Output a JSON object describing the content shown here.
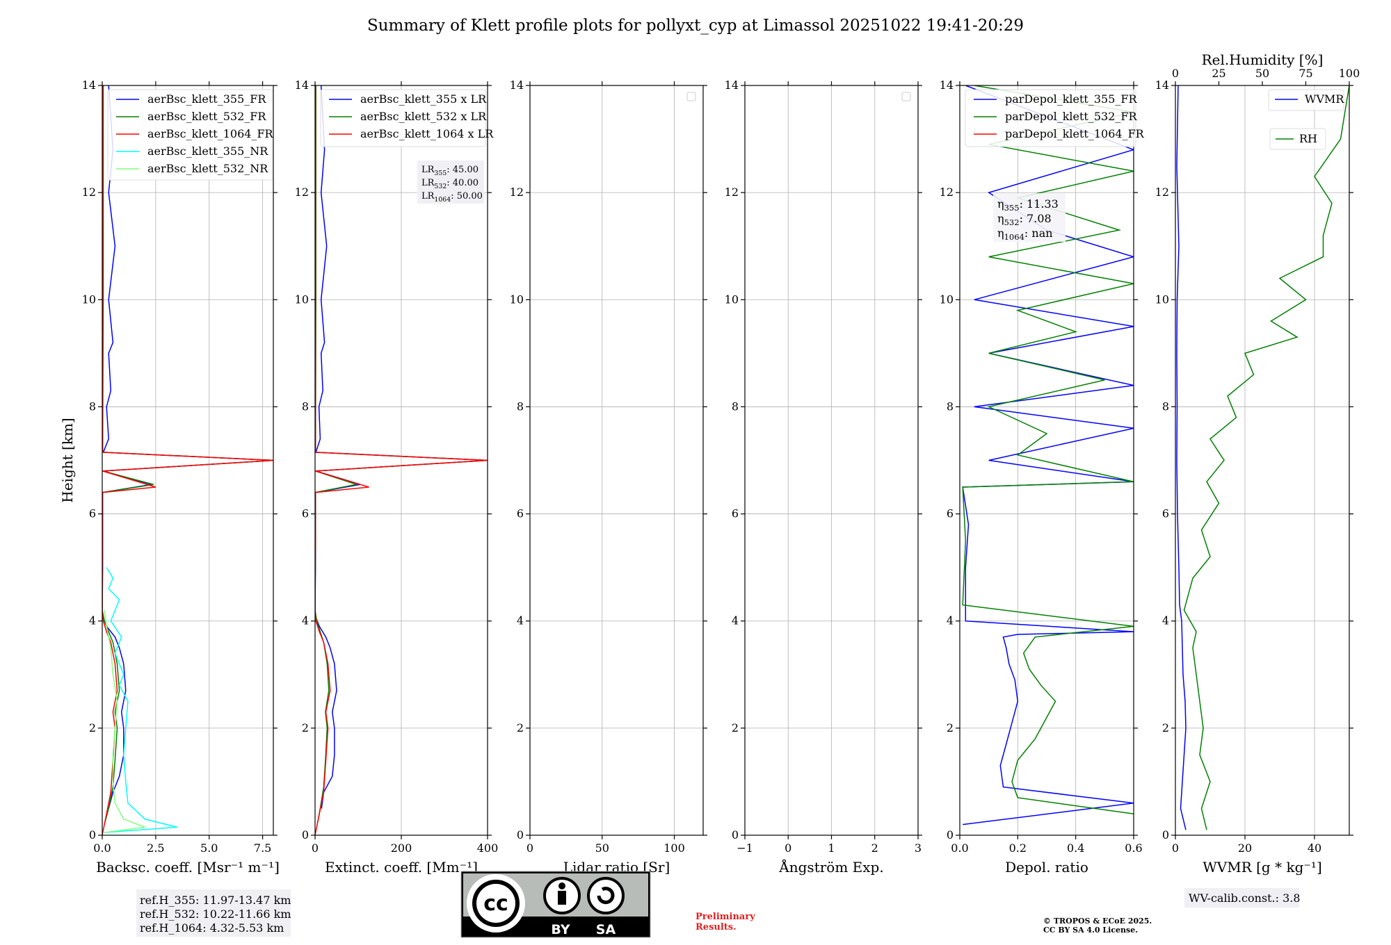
{
  "figure": {
    "title": "Summary of Klett profile plots for pollyxt_cyp at Limassol 20251022 19:41-20:29"
  },
  "chart_data": [
    {
      "type": "line",
      "panel": "backscatter",
      "xlabel": "Backsc. coeff. [Msr⁻¹ m⁻¹]",
      "ylabel": "Height [km]",
      "xlim": [
        0,
        8
      ],
      "ylim": [
        0,
        14
      ],
      "xticks": [
        "0.0",
        "2.5",
        "5.0",
        "7.5"
      ],
      "xtick_values": [
        0,
        2.5,
        5,
        7.5
      ],
      "yticks": [
        "0",
        "2",
        "4",
        "6",
        "8",
        "10",
        "12",
        "14"
      ],
      "grid": true,
      "legend_position": "top-right",
      "series": [
        {
          "name": "aerBsc_klett_355_FR",
          "color": "#0000ff",
          "x": [
            0.3,
            0.5,
            0.8,
            1.0,
            1.0,
            0.9,
            1.1,
            1.0,
            0.8,
            0.6,
            0.2,
            0.0,
            0.02,
            0.02,
            0.02,
            2.3,
            0.05,
            8.0,
            0.05,
            0.3,
            0.2,
            0.4,
            0.3,
            0.5,
            0.3,
            0.6,
            0.3,
            0.5,
            0.3
          ],
          "y": [
            0.5,
            0.8,
            1.1,
            1.5,
            2.0,
            2.3,
            2.7,
            3.2,
            3.5,
            3.7,
            3.9,
            4.1,
            5.0,
            6.0,
            6.4,
            6.55,
            6.8,
            7.0,
            7.15,
            7.4,
            8.0,
            8.3,
            9.0,
            9.2,
            10.0,
            11.0,
            12.0,
            12.8,
            14.0
          ]
        },
        {
          "name": "aerBsc_klett_532_FR",
          "color": "#008000",
          "x": [
            0.1,
            0.3,
            0.5,
            0.6,
            0.7,
            0.6,
            0.8,
            0.7,
            0.5,
            0.3,
            0.1,
            0.0,
            0.01,
            0.01,
            2.4,
            0.02,
            8.0,
            0.02,
            0.05,
            0.05
          ],
          "y": [
            0.2,
            0.5,
            0.9,
            1.4,
            2.0,
            2.3,
            2.7,
            3.2,
            3.6,
            3.8,
            4.0,
            4.2,
            5.5,
            6.4,
            6.55,
            6.8,
            7.0,
            7.15,
            10.0,
            14.0
          ]
        },
        {
          "name": "aerBsc_klett_1064_FR",
          "color": "#ff0000",
          "x": [
            0.0,
            0.2,
            0.4,
            0.5,
            0.6,
            0.5,
            0.7,
            0.6,
            0.4,
            0.2,
            0.05,
            0.0,
            0.01,
            0.01,
            2.5,
            0.02,
            8.0,
            0.02,
            0.02,
            0.02
          ],
          "y": [
            0.0,
            0.4,
            0.8,
            1.4,
            2.0,
            2.3,
            2.7,
            3.2,
            3.6,
            3.8,
            4.0,
            4.2,
            5.5,
            6.4,
            6.5,
            6.8,
            7.0,
            7.15,
            10.0,
            14.0
          ]
        },
        {
          "name": "aerBsc_klett_355_NR",
          "color": "#00ffff",
          "x": [
            0.1,
            3.5,
            2.0,
            1.2,
            1.1,
            1.0,
            1.1,
            1.2,
            0.8,
            1.0,
            0.6,
            0.9,
            0.4,
            0.8,
            0.3,
            0.5,
            0.2
          ],
          "y": [
            0.05,
            0.15,
            0.3,
            0.6,
            1.0,
            1.5,
            2.0,
            2.5,
            2.8,
            3.0,
            3.4,
            3.7,
            4.0,
            4.4,
            4.6,
            4.8,
            5.0
          ]
        },
        {
          "name": "aerBsc_klett_532_NR",
          "color": "#7fff7f",
          "x": [
            0.1,
            2.0,
            1.0,
            0.6,
            0.5,
            0.5,
            0.6,
            0.7,
            0.5,
            0.4,
            0.2,
            0.1
          ],
          "y": [
            0.05,
            0.15,
            0.3,
            0.6,
            1.0,
            1.5,
            2.0,
            2.5,
            3.0,
            3.5,
            3.9,
            4.2
          ]
        }
      ],
      "annotations": [
        "ref.H_355: 11.97-13.47 km",
        "ref.H_532: 10.22-11.66 km",
        "ref.H_1064: 4.32-5.53 km"
      ]
    },
    {
      "type": "line",
      "panel": "extinction",
      "xlabel": "Extinct. coeff. [Mm⁻¹]",
      "xlim": [
        0,
        400
      ],
      "ylim": [
        0,
        14
      ],
      "xticks": [
        "0",
        "200",
        "400"
      ],
      "xtick_values": [
        0,
        200,
        400
      ],
      "yticks": [
        "0",
        "2",
        "4",
        "6",
        "8",
        "10",
        "12",
        "14"
      ],
      "grid": true,
      "legend_position": "top-right",
      "series": [
        {
          "name": "aerBsc_klett_355 x LR",
          "color": "#0000ff",
          "x": [
            15,
            20,
            40,
            45,
            45,
            40,
            50,
            45,
            35,
            25,
            10,
            0,
            1,
            1,
            1,
            105,
            2,
            400,
            2,
            12,
            9,
            18,
            14,
            22,
            14,
            27,
            14,
            22,
            14
          ],
          "y": [
            0.5,
            0.8,
            1.1,
            1.5,
            2.0,
            2.3,
            2.7,
            3.2,
            3.5,
            3.7,
            3.9,
            4.1,
            5.0,
            6.0,
            6.4,
            6.55,
            6.8,
            7.0,
            7.15,
            7.4,
            8.0,
            8.3,
            9.0,
            9.2,
            10.0,
            11.0,
            12.0,
            12.8,
            14.0
          ]
        },
        {
          "name": "aerBsc_klett_532 x LR",
          "color": "#008000",
          "x": [
            5,
            12,
            20,
            24,
            28,
            24,
            32,
            28,
            20,
            12,
            4,
            0,
            1,
            1,
            96,
            1,
            400,
            1,
            2,
            2
          ],
          "y": [
            0.2,
            0.5,
            0.9,
            1.4,
            2.0,
            2.3,
            2.7,
            3.2,
            3.6,
            3.8,
            4.0,
            4.2,
            5.5,
            6.4,
            6.55,
            6.8,
            7.0,
            7.15,
            10.0,
            14.0
          ]
        },
        {
          "name": "aerBsc_klett_1064 x LR",
          "color": "#ff0000",
          "x": [
            0,
            10,
            20,
            25,
            30,
            25,
            35,
            30,
            20,
            10,
            2,
            0,
            1,
            1,
            125,
            1,
            400,
            1,
            1,
            1
          ],
          "y": [
            0.0,
            0.4,
            0.8,
            1.4,
            2.0,
            2.3,
            2.7,
            3.2,
            3.6,
            3.8,
            4.0,
            4.2,
            5.5,
            6.4,
            6.5,
            6.8,
            7.0,
            7.15,
            10.0,
            14.0
          ]
        }
      ],
      "lidar_ratio_box": {
        "prefix": "LR",
        "entries": [
          {
            "sub": "355",
            "value": ": 45.00"
          },
          {
            "sub": "532",
            "value": ": 40.00"
          },
          {
            "sub": "1064",
            "value": ": 50.00"
          }
        ]
      }
    },
    {
      "type": "line",
      "panel": "lidar-ratio",
      "xlabel": "Lidar ratio [Sr]",
      "xlim": [
        0,
        120
      ],
      "ylim": [
        0,
        14
      ],
      "xticks": [
        "0",
        "50",
        "100"
      ],
      "xtick_values": [
        0,
        50,
        100
      ],
      "yticks": [
        "0",
        "2",
        "4",
        "6",
        "8",
        "10",
        "12",
        "14"
      ],
      "grid": true,
      "legend_position": "top-right",
      "series": []
    },
    {
      "type": "line",
      "panel": "angstrom",
      "xlabel": "Ångström Exp.",
      "xlim": [
        -1,
        3
      ],
      "ylim": [
        0,
        14
      ],
      "xticks": [
        "−1",
        "0",
        "1",
        "2",
        "3"
      ],
      "xtick_values": [
        -1,
        0,
        1,
        2,
        3
      ],
      "yticks": [
        "0",
        "2",
        "4",
        "6",
        "8",
        "10",
        "12",
        "14"
      ],
      "grid": true,
      "legend_position": "top-right",
      "series": []
    },
    {
      "type": "line",
      "panel": "depol",
      "xlabel": "Depol. ratio",
      "xlim": [
        0,
        0.6
      ],
      "ylim": [
        0,
        14
      ],
      "xticks": [
        "0.0",
        "0.2",
        "0.4",
        "0.6"
      ],
      "xtick_values": [
        0,
        0.2,
        0.4,
        0.6
      ],
      "yticks": [
        "0",
        "2",
        "4",
        "6",
        "8",
        "10",
        "12",
        "14"
      ],
      "grid": true,
      "legend_position": "top-right",
      "series": [
        {
          "name": "parDepol_klett_355_FR",
          "color": "#0000ff",
          "x": [
            0.01,
            0.6,
            0.15,
            0.14,
            0.16,
            0.18,
            0.2,
            0.19,
            0.17,
            0.16,
            0.15,
            0.2,
            0.6,
            0.02,
            0.02,
            0.03,
            0.01,
            0.6,
            0.1,
            0.6,
            0.05,
            0.6,
            0.1,
            0.6,
            0.05,
            0.6,
            0.3,
            0.1,
            0.6,
            0.02
          ],
          "y": [
            0.2,
            0.6,
            0.9,
            1.3,
            1.7,
            2.1,
            2.5,
            2.9,
            3.2,
            3.5,
            3.7,
            3.75,
            3.8,
            4.0,
            5.0,
            5.8,
            6.5,
            6.6,
            7.0,
            7.6,
            8.0,
            8.4,
            9.0,
            9.5,
            10.0,
            10.8,
            11.3,
            12.0,
            12.8,
            14.0
          ]
        },
        {
          "name": "parDepol_klett_532_FR",
          "color": "#008000",
          "x": [
            0.6,
            0.2,
            0.18,
            0.2,
            0.26,
            0.3,
            0.33,
            0.28,
            0.24,
            0.22,
            0.26,
            0.6,
            0.01,
            0.02,
            0.01,
            0.6,
            0.2,
            0.3,
            0.1,
            0.5,
            0.1,
            0.4,
            0.2,
            0.6,
            0.1,
            0.55,
            0.2,
            0.6,
            0.1,
            0.6,
            0.05
          ],
          "y": [
            0.4,
            0.7,
            1.0,
            1.4,
            1.8,
            2.2,
            2.5,
            2.8,
            3.1,
            3.4,
            3.7,
            3.9,
            4.3,
            5.5,
            6.5,
            6.6,
            7.1,
            7.5,
            8.0,
            8.5,
            9.0,
            9.4,
            9.8,
            10.3,
            10.8,
            11.3,
            11.9,
            12.4,
            12.9,
            13.5,
            14.0
          ]
        },
        {
          "name": "parDepol_klett_1064_FR",
          "color": "#ff0000",
          "x": [],
          "y": []
        }
      ],
      "eta_box": {
        "entries": [
          {
            "sub": "355",
            "value": ": 11.33"
          },
          {
            "sub": "532",
            "value": ": 7.08"
          },
          {
            "sub": "1064",
            "value": ": nan"
          }
        ]
      }
    },
    {
      "type": "line",
      "panel": "water-vapour",
      "xlabel": "WVMR [g * kg⁻¹]",
      "xlim": [
        0,
        50
      ],
      "ylim": [
        0,
        14
      ],
      "xticks": [
        "0",
        "20",
        "40"
      ],
      "xtick_values": [
        0,
        20,
        40
      ],
      "yticks": [
        "0",
        "2",
        "4",
        "6",
        "8",
        "10",
        "12",
        "14"
      ],
      "top_axis": {
        "label": "Rel.Humidity [%]",
        "xlim": [
          0,
          100
        ],
        "xticks": [
          "0",
          "25",
          "50",
          "75",
          "100"
        ],
        "xtick_values": [
          0,
          25,
          50,
          75,
          100
        ]
      },
      "grid": true,
      "series": [
        {
          "name": "WVMR",
          "color": "#0000ff",
          "x": [
            3,
            1.5,
            2,
            2.5,
            3,
            2.8,
            2.2,
            2.0,
            1.8,
            1.2,
            1.0,
            0.6,
            0.4,
            0.5,
            0.4,
            0.5,
            1,
            0.4,
            0.8
          ],
          "y": [
            0.1,
            0.5,
            1.0,
            1.5,
            2.0,
            2.5,
            3.0,
            3.5,
            4.0,
            4.3,
            5.0,
            6.0,
            7.0,
            8.0,
            9.0,
            10.0,
            11.0,
            12.5,
            14.0
          ]
        },
        {
          "name": "RH",
          "color": "#008000",
          "axis": "top",
          "x": [
            18,
            15,
            20,
            14,
            16,
            14,
            12,
            10,
            12,
            5,
            10,
            20,
            15,
            25,
            18,
            28,
            20,
            35,
            30,
            45,
            40,
            70,
            55,
            75,
            60,
            85,
            85,
            90,
            80,
            95,
            100
          ],
          "y": [
            0.1,
            0.5,
            1.0,
            1.5,
            2.0,
            2.5,
            3.0,
            3.5,
            3.8,
            4.2,
            4.8,
            5.2,
            5.7,
            6.2,
            6.6,
            7.0,
            7.4,
            7.8,
            8.2,
            8.6,
            9.0,
            9.3,
            9.6,
            10.0,
            10.4,
            10.8,
            11.2,
            11.8,
            12.3,
            13.0,
            14.0
          ]
        }
      ],
      "calib_note": "WV-calib.const.: 3.8"
    }
  ],
  "footer": {
    "license_badge": {
      "left": "BY",
      "right": "SA",
      "symbol": "cc"
    },
    "preliminary": [
      "Preliminary",
      "Results."
    ],
    "copyright": [
      "© TROPOS & ECoE 2025.",
      "CC BY SA 4.0 License."
    ]
  }
}
